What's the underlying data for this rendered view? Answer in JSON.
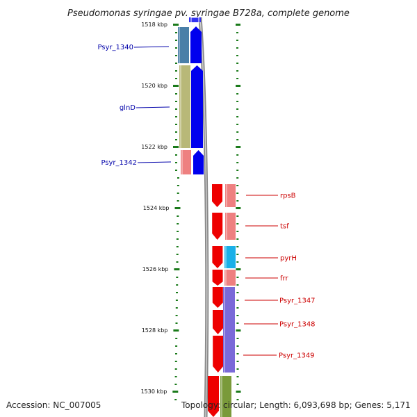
{
  "title": "Pseudomonas syringae pv. syringae B728a, complete genome",
  "footer": {
    "accession": "Accession: NC_007005",
    "summary": "Topology: circular; Length: 6,093,698 bp; Genes: 5,171"
  },
  "ruler": {
    "labels": [
      "1518 kbp",
      "1520 kbp",
      "1522 kbp",
      "1524 kbp",
      "1526 kbp",
      "1528 kbp",
      "1530 kbp"
    ]
  },
  "colors": {
    "left_strand_cds": "#0000ee",
    "right_strand_cds": "#ee0000",
    "left_label": "#0000aa",
    "right_label": "#cc0000",
    "tick": "#1a7a1a",
    "backbone": "#888888",
    "cog_psyr1340": "#4a7fa8",
    "cog_glnD": "#b8b878",
    "cog_pink": "#ee8080",
    "cog_pyrH": "#1ab0e8",
    "cog_purple": "#7a6ad8",
    "cog_green": "#7a9a3a"
  },
  "genes_left": [
    {
      "name": "Psyr_1340",
      "label": "Psyr_1340",
      "cog": "cog_psyr1340"
    },
    {
      "name": "glnD",
      "label": "glnD",
      "cog": "cog_glnD"
    },
    {
      "name": "Psyr_1342",
      "label": "Psyr_1342",
      "cog": "cog_pink"
    }
  ],
  "genes_right": [
    {
      "name": "rpsB",
      "label": "rpsB",
      "cog": "cog_pink"
    },
    {
      "name": "tsf",
      "label": "tsf",
      "cog": "cog_pink"
    },
    {
      "name": "pyrH",
      "label": "pyrH",
      "cog": "cog_pyrH"
    },
    {
      "name": "frr",
      "label": "frr",
      "cog": "cog_pink"
    },
    {
      "name": "Psyr_1347",
      "label": "Psyr_1347",
      "cog": "cog_purple"
    },
    {
      "name": "Psyr_1348",
      "label": "Psyr_1348",
      "cog": "cog_purple"
    },
    {
      "name": "Psyr_1349",
      "label": "Psyr_1349",
      "cog": "cog_purple"
    }
  ]
}
